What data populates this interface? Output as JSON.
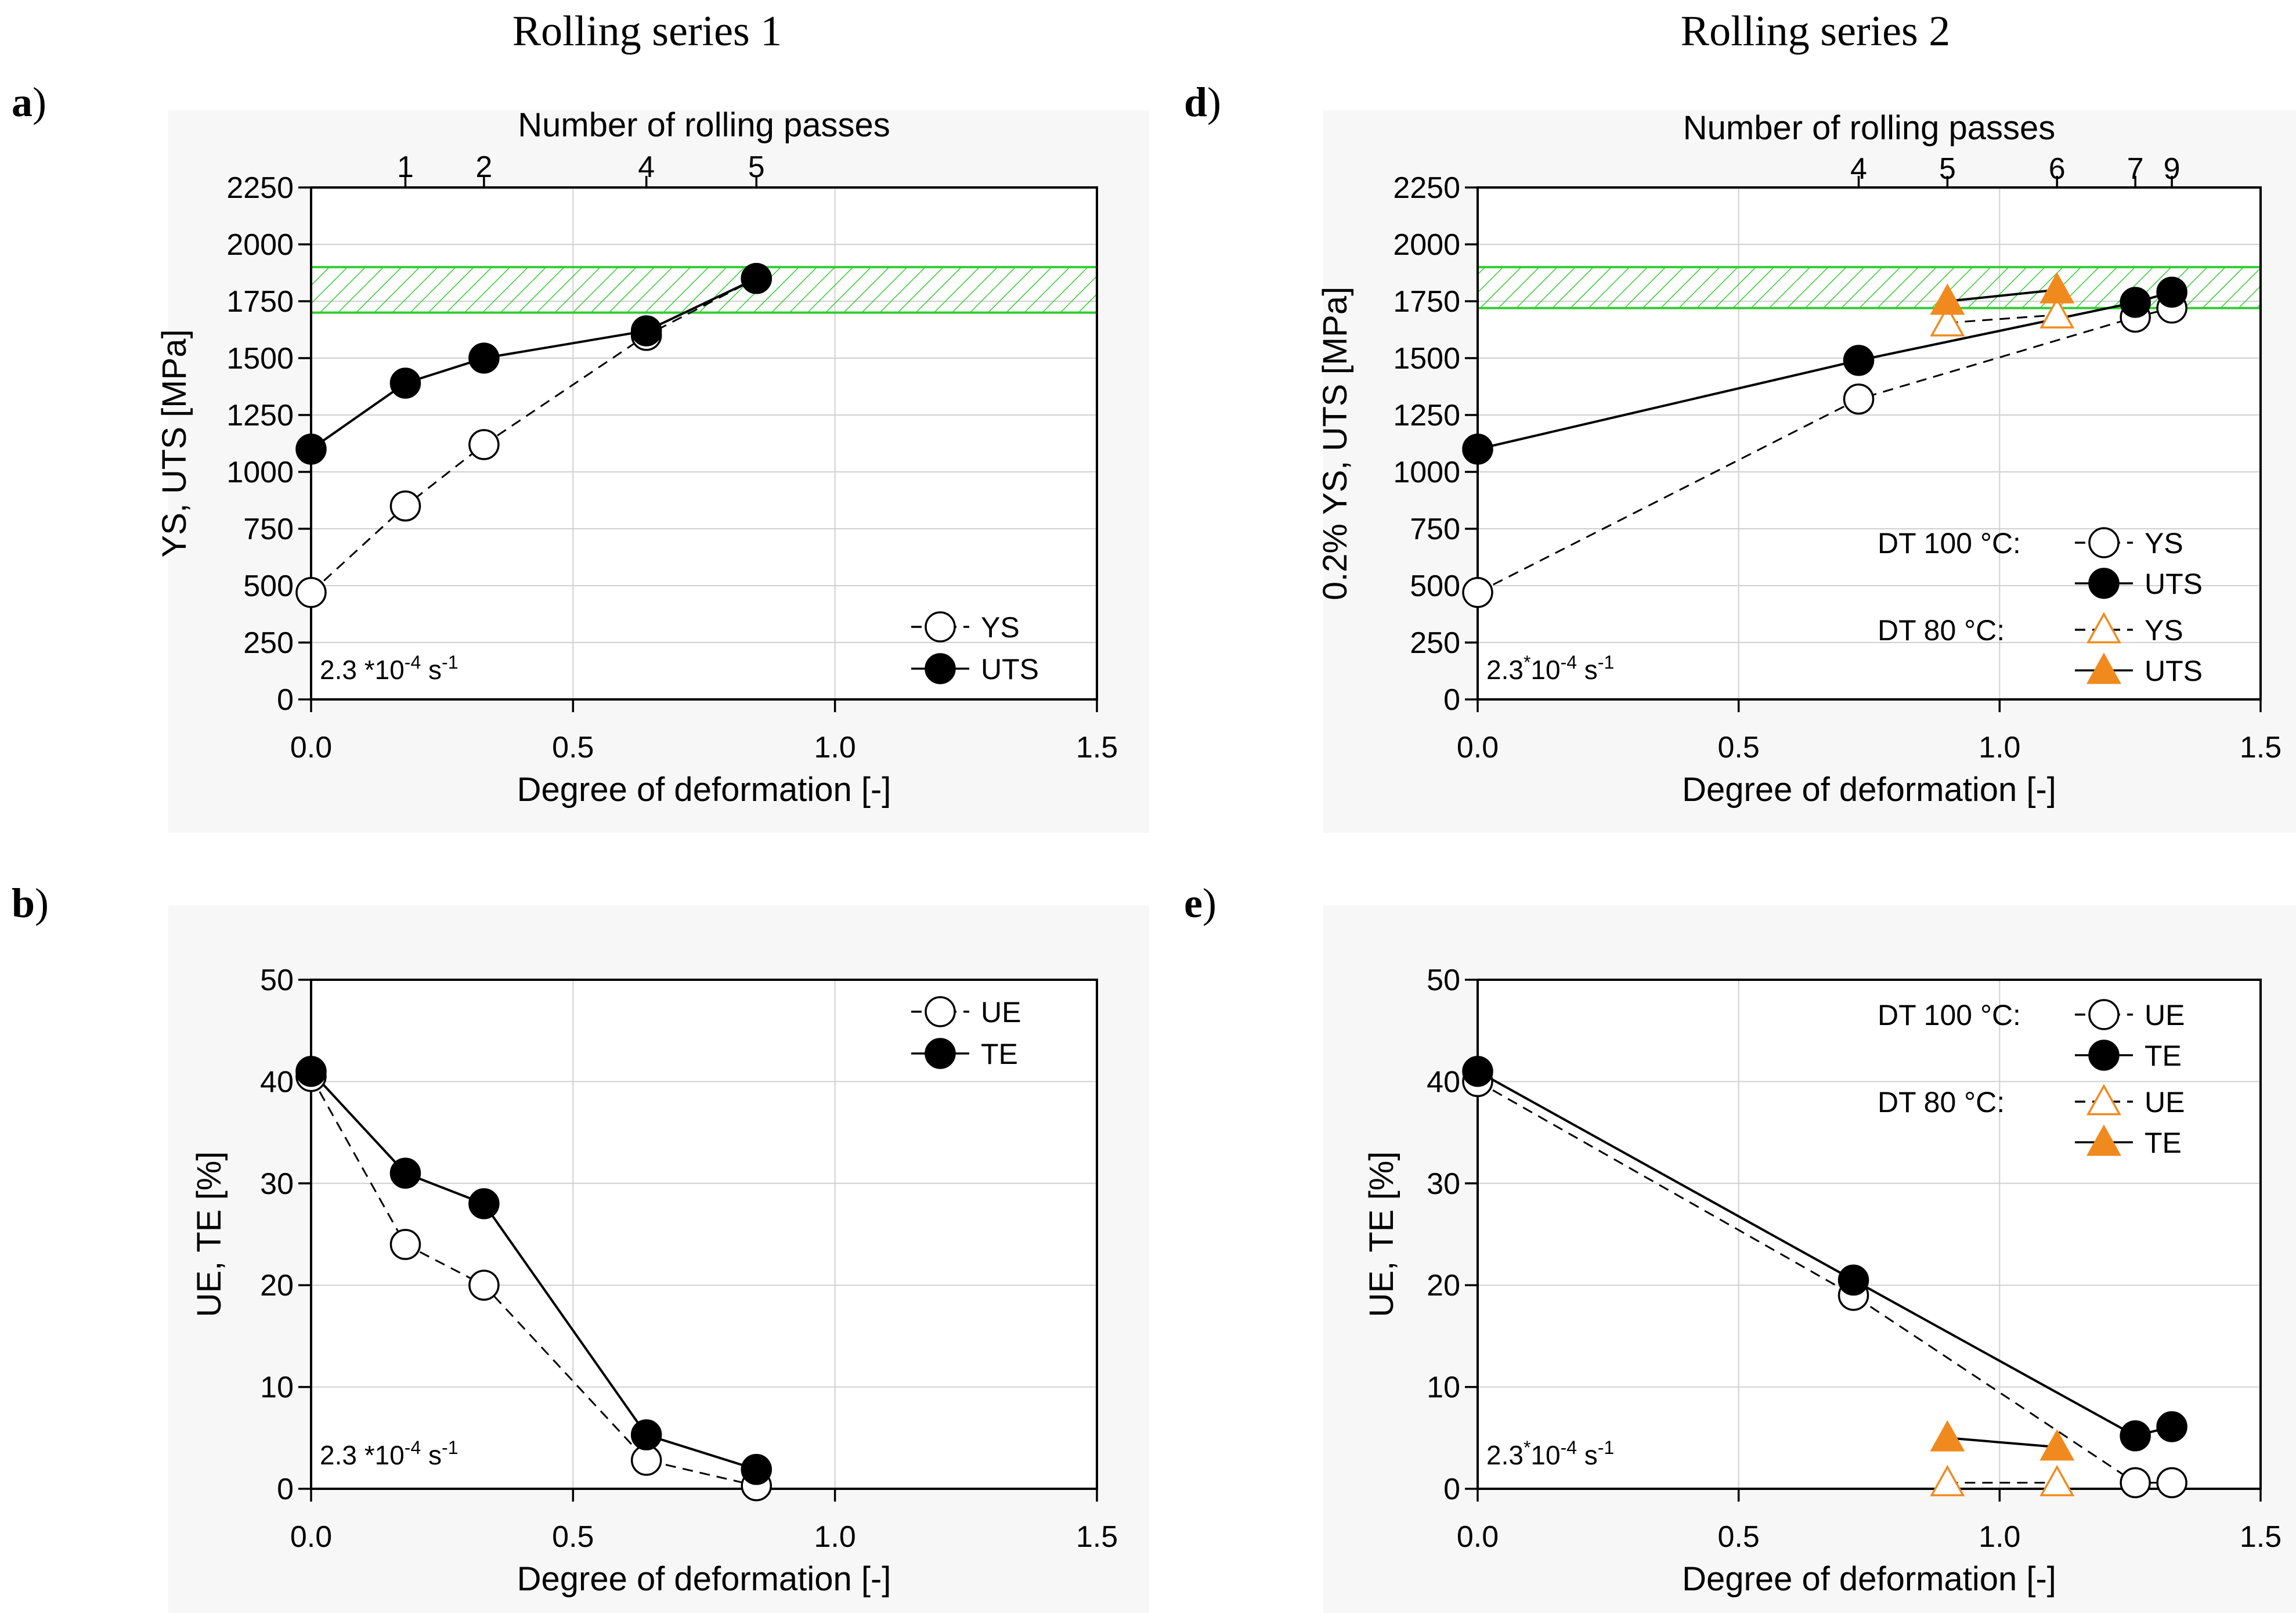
{
  "headers": {
    "left": "Rolling series 1",
    "right": "Rolling series 2"
  },
  "colors": {
    "orange": "#F08A1E",
    "green": "#33CC33",
    "grid": "#d0d0d0",
    "panel_bg": "#f7f7f7"
  },
  "chart_data": [
    {
      "id": "a",
      "panel_letter": "a",
      "type": "line",
      "xlabel": "Degree of deformation [-]",
      "ylabel": "YS, UTS [MPa]",
      "xlim": [
        0,
        1.5
      ],
      "ylim": [
        0,
        2250
      ],
      "xticks": [
        0,
        0.5,
        1,
        1.5
      ],
      "xtick_labels": [
        "0.0",
        "0.5",
        "1.0",
        "1.5"
      ],
      "yticks": [
        0,
        250,
        500,
        750,
        1000,
        1250,
        1500,
        1750,
        2000,
        2250
      ],
      "ytick_labels": [
        "0",
        "250",
        "500",
        "750",
        "1000",
        "1250",
        "1500",
        "1750",
        "2000",
        "2250"
      ],
      "top_axis": {
        "label": "Number of rolling passes",
        "ticks": [
          0.18,
          0.33,
          0.64,
          0.85
        ],
        "labels": [
          "1",
          "2",
          "4",
          "5"
        ]
      },
      "band": {
        "y_from": 1700,
        "y_to": 1900
      },
      "grid": true,
      "strain_rate": {
        "prefix": "2.3 *10",
        "exp": "-4",
        "suffix": " s",
        "unit_exp": "-1"
      },
      "legend": {
        "position": "bottom-right",
        "entries": [
          {
            "series": 0,
            "label": "YS"
          },
          {
            "series": 1,
            "label": "UTS"
          }
        ]
      },
      "series": [
        {
          "name": "YS",
          "marker": "circle-open",
          "dash": true,
          "color": "#000000",
          "x": [
            0.0,
            0.18,
            0.33,
            0.64,
            0.85
          ],
          "y": [
            470,
            850,
            1120,
            1600,
            1850
          ]
        },
        {
          "name": "UTS",
          "marker": "circle-filled",
          "dash": false,
          "color": "#000000",
          "x": [
            0.0,
            0.18,
            0.33,
            0.64,
            0.85
          ],
          "y": [
            1100,
            1390,
            1500,
            1620,
            1850
          ]
        }
      ]
    },
    {
      "id": "b",
      "panel_letter": "b",
      "type": "line",
      "xlabel": "Degree of deformation [-]",
      "ylabel": "UE, TE [%]",
      "xlim": [
        0,
        1.5
      ],
      "ylim": [
        0,
        50
      ],
      "xticks": [
        0,
        0.5,
        1,
        1.5
      ],
      "xtick_labels": [
        "0.0",
        "0.5",
        "1.0",
        "1.5"
      ],
      "yticks": [
        0,
        10,
        20,
        30,
        40,
        50
      ],
      "ytick_labels": [
        "0",
        "10",
        "20",
        "30",
        "40",
        "50"
      ],
      "grid": true,
      "strain_rate": {
        "prefix": "2.3 *10",
        "exp": "-4",
        "suffix": " s",
        "unit_exp": "-1"
      },
      "legend": {
        "position": "top-right",
        "entries": [
          {
            "series": 0,
            "label": "UE"
          },
          {
            "series": 1,
            "label": "TE"
          }
        ]
      },
      "series": [
        {
          "name": "UE",
          "marker": "circle-open",
          "dash": true,
          "color": "#000000",
          "x": [
            0.0,
            0.18,
            0.33,
            0.64,
            0.85
          ],
          "y": [
            40.5,
            24,
            20,
            2.8,
            0.3
          ]
        },
        {
          "name": "TE",
          "marker": "circle-filled",
          "dash": false,
          "color": "#000000",
          "x": [
            0.0,
            0.18,
            0.33,
            0.64,
            0.85
          ],
          "y": [
            41,
            31,
            28,
            5.3,
            1.9
          ]
        }
      ]
    },
    {
      "id": "d",
      "panel_letter": "d",
      "type": "line",
      "xlabel": "Degree of deformation [-]",
      "ylabel": "0.2% YS, UTS [MPa]",
      "xlim": [
        0,
        1.5
      ],
      "ylim": [
        0,
        2250
      ],
      "xticks": [
        0,
        0.5,
        1,
        1.5
      ],
      "xtick_labels": [
        "0.0",
        "0.5",
        "1.0",
        "1.5"
      ],
      "yticks": [
        0,
        250,
        500,
        750,
        1000,
        1250,
        1500,
        1750,
        2000,
        2250
      ],
      "ytick_labels": [
        "0",
        "250",
        "500",
        "750",
        "1000",
        "1250",
        "1500",
        "1750",
        "2000",
        "2250"
      ],
      "top_axis": {
        "label": "Number of rolling passes",
        "ticks": [
          0.73,
          0.9,
          1.11,
          1.26,
          1.33
        ],
        "labels": [
          "4",
          "5",
          "6",
          "7",
          "9"
        ]
      },
      "band": {
        "y_from": 1720,
        "y_to": 1900
      },
      "grid": true,
      "strain_rate": {
        "prefix": "2.3",
        "star": "*",
        "mid": "10",
        "exp": "-4",
        "suffix": " s",
        "unit_exp": "-1"
      },
      "legend": {
        "position": "bottom-right",
        "groups": [
          {
            "label": "DT 100 °C:",
            "entries": [
              {
                "series": 0,
                "label": "YS"
              },
              {
                "series": 1,
                "label": "UTS"
              }
            ]
          },
          {
            "label": "DT   80 °C:",
            "entries": [
              {
                "series": 2,
                "label": "YS"
              },
              {
                "series": 3,
                "label": "UTS"
              }
            ]
          }
        ]
      },
      "series": [
        {
          "name": "YS",
          "group": "DT 100 °C",
          "marker": "circle-open",
          "dash": true,
          "color": "#000000",
          "x": [
            0.0,
            0.73,
            1.26,
            1.33
          ],
          "y": [
            470,
            1320,
            1680,
            1720
          ]
        },
        {
          "name": "UTS",
          "group": "DT 100 °C",
          "marker": "circle-filled",
          "dash": false,
          "color": "#000000",
          "x": [
            0.0,
            0.73,
            1.26,
            1.33
          ],
          "y": [
            1100,
            1490,
            1745,
            1790
          ]
        },
        {
          "name": "YS",
          "group": "DT 80 °C",
          "marker": "triangle-open",
          "dash": true,
          "color": "#F08A1E",
          "x": [
            0.9,
            1.11
          ],
          "y": [
            1655,
            1690
          ]
        },
        {
          "name": "UTS",
          "group": "DT 80 °C",
          "marker": "triangle-filled",
          "dash": false,
          "color": "#F08A1E",
          "x": [
            0.9,
            1.11
          ],
          "y": [
            1750,
            1800
          ]
        }
      ]
    },
    {
      "id": "e",
      "panel_letter": "e",
      "type": "line",
      "xlabel": "Degree of deformation [-]",
      "ylabel": "UE, TE [%]",
      "xlim": [
        0,
        1.5
      ],
      "ylim": [
        0,
        50
      ],
      "xticks": [
        0,
        0.5,
        1,
        1.5
      ],
      "xtick_labels": [
        "0.0",
        "0.5",
        "1.0",
        "1.5"
      ],
      "yticks": [
        0,
        10,
        20,
        30,
        40,
        50
      ],
      "ytick_labels": [
        "0",
        "10",
        "20",
        "30",
        "40",
        "50"
      ],
      "grid": true,
      "strain_rate": {
        "prefix": "2.3",
        "star": "*",
        "mid": "10",
        "exp": "-4",
        "suffix": " s",
        "unit_exp": "-1"
      },
      "legend": {
        "position": "top-right",
        "groups": [
          {
            "label": "DT 100 °C:",
            "entries": [
              {
                "series": 0,
                "label": "UE"
              },
              {
                "series": 1,
                "label": "TE"
              }
            ]
          },
          {
            "label": "DT   80 °C:",
            "entries": [
              {
                "series": 2,
                "label": "UE"
              },
              {
                "series": 3,
                "label": "TE"
              }
            ]
          }
        ]
      },
      "series": [
        {
          "name": "UE",
          "group": "DT 100 °C",
          "marker": "circle-open",
          "dash": true,
          "color": "#000000",
          "x": [
            0.0,
            0.72,
            1.26,
            1.33
          ],
          "y": [
            40,
            19,
            0.6,
            0.6
          ]
        },
        {
          "name": "TE",
          "group": "DT 100 °C",
          "marker": "circle-filled",
          "dash": false,
          "color": "#000000",
          "x": [
            0.0,
            0.72,
            1.26,
            1.33
          ],
          "y": [
            41,
            20.5,
            5.2,
            6.1
          ]
        },
        {
          "name": "UE",
          "group": "DT 80 °C",
          "marker": "triangle-open",
          "dash": true,
          "color": "#F08A1E",
          "x": [
            0.9,
            1.11
          ],
          "y": [
            0.6,
            0.6
          ]
        },
        {
          "name": "TE",
          "group": "DT 80 °C",
          "marker": "triangle-filled",
          "dash": false,
          "color": "#F08A1E",
          "x": [
            0.9,
            1.11
          ],
          "y": [
            5.0,
            4.1
          ]
        }
      ]
    }
  ]
}
